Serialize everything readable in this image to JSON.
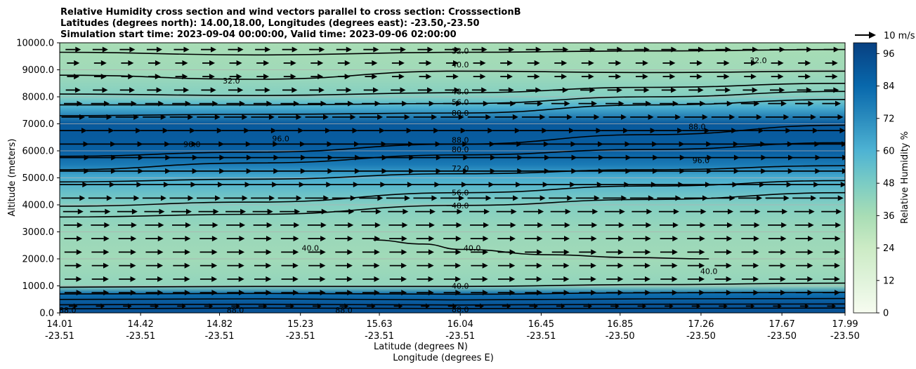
{
  "chart_data": {
    "type": "heatmap",
    "title_lines": [
      "Relative Humidity cross section and wind vectors parallel to cross section: CrosssectionB",
      "Latitudes (degrees north): 14.00,18.00, Longitudes (degrees east): -23.50,-23.50",
      "Simulation start time: 2023-09-04 00:00:00, Valid time: 2023-09-06 02:00:00"
    ],
    "ylabel": "Altitude (meters)",
    "xlabel": "Latitude (degrees N)",
    "xlabel2": "Longitude (degrees E)",
    "ylim": [
      0,
      10000
    ],
    "yticks": [
      "0.0",
      "1000.0",
      "2000.0",
      "3000.0",
      "4000.0",
      "5000.0",
      "6000.0",
      "7000.0",
      "8000.0",
      "9000.0",
      "10000.0"
    ],
    "x_lat_ticks": [
      "14.01",
      "14.42",
      "14.82",
      "15.23",
      "15.63",
      "16.04",
      "16.45",
      "16.85",
      "17.26",
      "17.67",
      "17.99"
    ],
    "x_lon_ticks": [
      "-23.51",
      "-23.51",
      "-23.51",
      "-23.51",
      "-23.51",
      "-23.51",
      "-23.51",
      "-23.50",
      "-23.50",
      "-23.50",
      "-23.50"
    ],
    "colorbar": {
      "label": "Relative Humidity %",
      "range": [
        0,
        100
      ],
      "ticks": [
        "0",
        "12",
        "24",
        "36",
        "48",
        "60",
        "72",
        "84",
        "96"
      ],
      "colormap": "GnBu"
    },
    "quiver_key": "10 m/s",
    "grid": "horizontal",
    "rh_profile": [
      {
        "alt": 0,
        "rh": 93
      },
      {
        "alt": 300,
        "rh": 92
      },
      {
        "alt": 700,
        "rh": 82
      },
      {
        "alt": 1000,
        "rh": 42
      },
      {
        "alt": 2000,
        "rh": 38
      },
      {
        "alt": 3000,
        "rh": 40
      },
      {
        "alt": 4000,
        "rh": 46
      },
      {
        "alt": 5000,
        "rh": 62
      },
      {
        "alt": 5500,
        "rh": 78
      },
      {
        "alt": 6000,
        "rh": 88
      },
      {
        "alt": 7000,
        "rh": 90
      },
      {
        "alt": 7600,
        "rh": 62
      },
      {
        "alt": 8000,
        "rh": 46
      },
      {
        "alt": 9000,
        "rh": 38
      },
      {
        "alt": 10000,
        "rh": 36
      }
    ],
    "contour_lines": [
      {
        "level": "88.0",
        "points": [
          [
            14.01,
            150
          ],
          [
            15.0,
            180
          ],
          [
            16.04,
            160
          ],
          [
            17.0,
            170
          ],
          [
            17.99,
            180
          ]
        ]
      },
      {
        "level": "88.0",
        "points": [
          [
            14.01,
            300
          ],
          [
            15.0,
            320
          ],
          [
            16.04,
            290
          ],
          [
            17.0,
            320
          ],
          [
            17.99,
            330
          ]
        ]
      },
      {
        "level": "80.0",
        "points": [
          [
            14.01,
            500
          ],
          [
            15.0,
            520
          ],
          [
            16.04,
            480
          ],
          [
            17.0,
            520
          ],
          [
            17.99,
            530
          ]
        ]
      },
      {
        "level": "56.0",
        "points": [
          [
            14.01,
            700
          ],
          [
            15.0,
            720
          ],
          [
            16.04,
            690
          ],
          [
            17.0,
            740
          ],
          [
            17.99,
            760
          ]
        ]
      },
      {
        "level": "40.0",
        "points": [
          [
            14.01,
            950
          ],
          [
            15.0,
            980
          ],
          [
            16.04,
            980
          ],
          [
            17.0,
            1050
          ],
          [
            17.99,
            1100
          ]
        ]
      },
      {
        "level": "40.0",
        "points": [
          [
            15.6,
            2700
          ],
          [
            15.85,
            2550
          ],
          [
            16.04,
            2350
          ],
          [
            16.5,
            2150
          ],
          [
            16.9,
            2050
          ],
          [
            17.3,
            2000
          ]
        ]
      },
      {
        "level": "48.0",
        "points": [
          [
            14.01,
            3550
          ],
          [
            15.0,
            3650
          ],
          [
            16.04,
            3980
          ],
          [
            17.0,
            4200
          ],
          [
            17.99,
            4450
          ]
        ]
      },
      {
        "level": "56.0",
        "points": [
          [
            14.01,
            3950
          ],
          [
            15.0,
            4100
          ],
          [
            16.04,
            4450
          ],
          [
            17.0,
            4700
          ],
          [
            17.99,
            4900
          ]
        ]
      },
      {
        "level": "72.0",
        "points": [
          [
            14.01,
            4850
          ],
          [
            15.0,
            4950
          ],
          [
            16.04,
            5150
          ],
          [
            17.0,
            5300
          ],
          [
            17.99,
            5450
          ]
        ]
      },
      {
        "level": "80.0",
        "points": [
          [
            14.01,
            5300
          ],
          [
            15.0,
            5550
          ],
          [
            16.04,
            5850
          ],
          [
            17.0,
            6050
          ],
          [
            17.99,
            6300
          ]
        ]
      },
      {
        "level": "88.0",
        "points": [
          [
            14.01,
            5800
          ],
          [
            15.0,
            5950
          ],
          [
            16.04,
            6250
          ],
          [
            17.0,
            6600
          ],
          [
            17.99,
            6950
          ]
        ]
      },
      {
        "level": "80.0",
        "points": [
          [
            14.01,
            7300
          ],
          [
            15.0,
            7350
          ],
          [
            16.04,
            7400
          ],
          [
            17.0,
            7700
          ],
          [
            17.99,
            7900
          ]
        ]
      },
      {
        "level": "56.0",
        "points": [
          [
            14.01,
            7700
          ],
          [
            15.0,
            7700
          ],
          [
            16.04,
            7750
          ],
          [
            17.0,
            8000
          ],
          [
            17.99,
            8200
          ]
        ]
      },
      {
        "level": "48.0",
        "points": [
          [
            14.01,
            8100
          ],
          [
            15.0,
            8050
          ],
          [
            16.04,
            8150
          ],
          [
            17.0,
            8350
          ],
          [
            17.99,
            8500
          ]
        ]
      },
      {
        "level": "40.0",
        "points": [
          [
            14.01,
            8800
          ],
          [
            15.0,
            8650
          ],
          [
            16.04,
            8950
          ],
          [
            17.0,
            8900
          ],
          [
            17.99,
            8950
          ]
        ]
      },
      {
        "level": "32.0",
        "points": [
          [
            14.01,
            9650
          ],
          [
            15.0,
            9550
          ],
          [
            16.04,
            9650
          ],
          [
            17.0,
            9700
          ],
          [
            17.99,
            9750
          ]
        ]
      }
    ],
    "contour_labels": [
      {
        "text": "88.0",
        "x": 14.05,
        "alt": 100
      },
      {
        "text": "88.0",
        "x": 14.9,
        "alt": 100
      },
      {
        "text": "88.0",
        "x": 15.45,
        "alt": 100
      },
      {
        "text": "88.0",
        "x": 16.04,
        "alt": 130
      },
      {
        "text": "40.0",
        "x": 16.04,
        "alt": 1000
      },
      {
        "text": "48.0",
        "x": 16.04,
        "alt": 3980
      },
      {
        "text": "56.0",
        "x": 16.04,
        "alt": 4450
      },
      {
        "text": "40.0",
        "x": 16.1,
        "alt": 2400
      },
      {
        "text": "40.0",
        "x": 15.28,
        "alt": 2400
      },
      {
        "text": "40.0",
        "x": 17.3,
        "alt": 1550
      },
      {
        "text": "72.0",
        "x": 16.04,
        "alt": 5350
      },
      {
        "text": "80.0",
        "x": 16.04,
        "alt": 6050
      },
      {
        "text": "88.0",
        "x": 16.04,
        "alt": 6400
      },
      {
        "text": "80.0",
        "x": 16.04,
        "alt": 7400
      },
      {
        "text": "56.0",
        "x": 16.04,
        "alt": 7800
      },
      {
        "text": "48.0",
        "x": 16.04,
        "alt": 8200
      },
      {
        "text": "96.0",
        "x": 14.68,
        "alt": 6250
      },
      {
        "text": "96.0",
        "x": 15.13,
        "alt": 6450
      },
      {
        "text": "96.0",
        "x": 17.26,
        "alt": 5650
      },
      {
        "text": "88.0",
        "x": 17.24,
        "alt": 6900
      },
      {
        "text": "40.0",
        "x": 16.04,
        "alt": 9200
      },
      {
        "text": "32.0",
        "x": 16.04,
        "alt": 9700
      },
      {
        "text": "32.0",
        "x": 17.55,
        "alt": 9350
      },
      {
        "text": "32.0",
        "x": 14.88,
        "alt": 8600
      }
    ],
    "wind_profile": [
      {
        "alt": 0,
        "u": 0
      },
      {
        "alt": 500,
        "u": 2.5
      },
      {
        "alt": 1500,
        "u": 2.4
      },
      {
        "alt": 3000,
        "u": 2.6
      },
      {
        "alt": 4000,
        "u": 3.0
      },
      {
        "alt": 5000,
        "u": 4.6
      },
      {
        "alt": 6000,
        "u": 4.7
      },
      {
        "alt": 7000,
        "u": 3.7
      },
      {
        "alt": 8000,
        "u": 2.3
      },
      {
        "alt": 9000,
        "u": 1.6
      },
      {
        "alt": 10000,
        "u": 2.4
      }
    ]
  }
}
